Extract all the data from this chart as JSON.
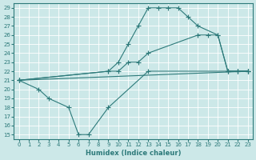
{
  "xlabel": "Humidex (Indice chaleur)",
  "bg_color": "#cce8e8",
  "line_color": "#2d7a7a",
  "grid_color": "#ffffff",
  "xlim": [
    -0.5,
    23.5
  ],
  "ylim": [
    14.5,
    29.5
  ],
  "xticks": [
    0,
    1,
    2,
    3,
    4,
    5,
    6,
    7,
    8,
    9,
    10,
    11,
    12,
    13,
    14,
    15,
    16,
    17,
    18,
    19,
    20,
    21,
    22,
    23
  ],
  "yticks": [
    15,
    16,
    17,
    18,
    19,
    20,
    21,
    22,
    23,
    24,
    25,
    26,
    27,
    28,
    29
  ],
  "line1_x": [
    0,
    23
  ],
  "line1_y": [
    21,
    22
  ],
  "line2_x": [
    0,
    2,
    3,
    5,
    6,
    7,
    9,
    13,
    21,
    22,
    23
  ],
  "line2_y": [
    21,
    20,
    19,
    18,
    15,
    15,
    18,
    22,
    22,
    22,
    22
  ],
  "line3_x": [
    0,
    9,
    10,
    11,
    12,
    13,
    14,
    15,
    16,
    17,
    18,
    20,
    21,
    22,
    23
  ],
  "line3_y": [
    21,
    22,
    23,
    25,
    27,
    29,
    29,
    29,
    29,
    28,
    27,
    26,
    22,
    22,
    22
  ],
  "line4_x": [
    0,
    9,
    10,
    11,
    12,
    13,
    18,
    19,
    20,
    21,
    22,
    23
  ],
  "line4_y": [
    21,
    22,
    22,
    23,
    23,
    24,
    26,
    26,
    26,
    22,
    22,
    22
  ]
}
